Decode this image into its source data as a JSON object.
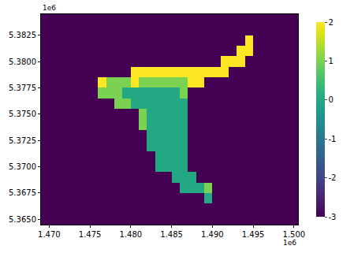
{
  "chart_data": {
    "type": "heatmap",
    "color": "Viridis",
    "grid": false,
    "x": [
      1469500,
      1470500,
      1471500,
      1472500,
      1473500,
      1474500,
      1475500,
      1476500,
      1477500,
      1478500,
      1479500,
      1480500,
      1481500,
      1482500,
      1483500,
      1484500,
      1485500,
      1486500,
      1487500,
      1488500,
      1489500,
      1490500,
      1491500,
      1492500,
      1493500,
      1494500,
      1495500,
      1496500,
      1497500,
      1498500,
      1499500,
      1500500
    ],
    "y": [
      5365000,
      5366000,
      5367000,
      5368000,
      5369000,
      5370000,
      5371000,
      5372000,
      5373000,
      5374000,
      5375000,
      5376000,
      5377000,
      5378000,
      5379000,
      5380000,
      5381000,
      5382000,
      5383000,
      5384000
    ],
    "z": [
      [
        -3,
        -3,
        -3,
        -3,
        -3,
        -3,
        -3,
        -3,
        -3,
        -3,
        -3,
        -3,
        -3,
        -3,
        -3,
        -3,
        -3,
        -3,
        -3,
        -3,
        -3,
        -3,
        -3,
        -3,
        -3,
        -3,
        -3,
        -3,
        -3,
        -3,
        -3,
        -3
      ],
      [
        -3,
        -3,
        -3,
        -3,
        -3,
        -3,
        -3,
        -3,
        -3,
        -3,
        -3,
        -3,
        -3,
        -3,
        -3,
        -3,
        -3,
        -3,
        -3,
        -3,
        -3,
        -3,
        -3,
        -3,
        -3,
        -3,
        -3,
        -3,
        -3,
        -3,
        -3,
        -3
      ],
      [
        -3,
        -3,
        -3,
        -3,
        -3,
        -3,
        -3,
        -3,
        -3,
        -3,
        -3,
        -3,
        -3,
        -3,
        -3,
        -3,
        -3,
        -3,
        -3,
        -3,
        0,
        -3,
        -3,
        -3,
        -3,
        -3,
        -3,
        -3,
        -3,
        -3,
        -3,
        -3
      ],
      [
        -3,
        -3,
        -3,
        -3,
        -3,
        -3,
        -3,
        -3,
        -3,
        -3,
        -3,
        -3,
        -3,
        -3,
        -3,
        -3,
        -3,
        0,
        0,
        0,
        1,
        -3,
        -3,
        -3,
        -3,
        -3,
        -3,
        -3,
        -3,
        -3,
        -3,
        -3
      ],
      [
        -3,
        -3,
        -3,
        -3,
        -3,
        -3,
        -3,
        -3,
        -3,
        -3,
        -3,
        -3,
        -3,
        -3,
        -3,
        -3,
        0,
        0,
        0,
        -3,
        -3,
        -3,
        -3,
        -3,
        -3,
        -3,
        -3,
        -3,
        -3,
        -3,
        -3,
        -3
      ],
      [
        -3,
        -3,
        -3,
        -3,
        -3,
        -3,
        -3,
        -3,
        -3,
        -3,
        -3,
        -3,
        -3,
        -3,
        0,
        0,
        0,
        0,
        -3,
        -3,
        -3,
        -3,
        -3,
        -3,
        -3,
        -3,
        -3,
        -3,
        -3,
        -3,
        -3,
        -3
      ],
      [
        -3,
        -3,
        -3,
        -3,
        -3,
        -3,
        -3,
        -3,
        -3,
        -3,
        -3,
        -3,
        -3,
        -3,
        0,
        0,
        0,
        0,
        -3,
        -3,
        -3,
        -3,
        -3,
        -3,
        -3,
        -3,
        -3,
        -3,
        -3,
        -3,
        -3,
        -3
      ],
      [
        -3,
        -3,
        -3,
        -3,
        -3,
        -3,
        -3,
        -3,
        -3,
        -3,
        -3,
        -3,
        -3,
        0,
        0,
        0,
        0,
        0,
        -3,
        -3,
        -3,
        -3,
        -3,
        -3,
        -3,
        -3,
        -3,
        -3,
        -3,
        -3,
        -3,
        -3
      ],
      [
        -3,
        -3,
        -3,
        -3,
        -3,
        -3,
        -3,
        -3,
        -3,
        -3,
        -3,
        -3,
        -3,
        0,
        0,
        0,
        0,
        0,
        -3,
        -3,
        -3,
        -3,
        -3,
        -3,
        -3,
        -3,
        -3,
        -3,
        -3,
        -3,
        -3,
        -3
      ],
      [
        -3,
        -3,
        -3,
        -3,
        -3,
        -3,
        -3,
        -3,
        -3,
        -3,
        -3,
        -3,
        1,
        0,
        0,
        0,
        0,
        0,
        -3,
        -3,
        -3,
        -3,
        -3,
        -3,
        -3,
        -3,
        -3,
        -3,
        -3,
        -3,
        -3,
        -3
      ],
      [
        -3,
        -3,
        -3,
        -3,
        -3,
        -3,
        -3,
        -3,
        -3,
        -3,
        -3,
        -3,
        1,
        0,
        0,
        0,
        0,
        0,
        -3,
        -3,
        -3,
        -3,
        -3,
        -3,
        -3,
        -3,
        -3,
        -3,
        -3,
        -3,
        -3,
        -3
      ],
      [
        -3,
        -3,
        -3,
        -3,
        -3,
        -3,
        -3,
        -3,
        -3,
        1,
        1,
        0,
        0,
        0,
        0,
        0,
        0,
        0,
        -3,
        -3,
        -3,
        -3,
        -3,
        -3,
        -3,
        -3,
        -3,
        -3,
        -3,
        -3,
        -3,
        -3
      ],
      [
        -3,
        -3,
        -3,
        -3,
        -3,
        -3,
        -3,
        1,
        1,
        1,
        0,
        0,
        0,
        0,
        0,
        0,
        0,
        1,
        -3,
        -3,
        -3,
        -3,
        -3,
        -3,
        -3,
        -3,
        -3,
        -3,
        -3,
        -3,
        -3,
        -3
      ],
      [
        -3,
        -3,
        -3,
        -3,
        -3,
        -3,
        -3,
        2,
        1,
        1,
        1,
        2,
        1,
        1,
        1,
        1,
        1,
        1,
        2,
        2,
        -3,
        -3,
        -3,
        -3,
        -3,
        -3,
        -3,
        -3,
        -3,
        -3,
        -3,
        -3
      ],
      [
        -3,
        -3,
        -3,
        -3,
        -3,
        -3,
        -3,
        -3,
        -3,
        -3,
        -3,
        2,
        2,
        2,
        2,
        2,
        2,
        2,
        2,
        2,
        2,
        2,
        2,
        -3,
        -3,
        -3,
        -3,
        -3,
        -3,
        -3,
        -3,
        -3
      ],
      [
        -3,
        -3,
        -3,
        -3,
        -3,
        -3,
        -3,
        -3,
        -3,
        -3,
        -3,
        -3,
        -3,
        -3,
        -3,
        -3,
        -3,
        -3,
        -3,
        -3,
        -3,
        -3,
        2,
        2,
        2,
        -3,
        -3,
        -3,
        -3,
        -3,
        -3,
        -3
      ],
      [
        -3,
        -3,
        -3,
        -3,
        -3,
        -3,
        -3,
        -3,
        -3,
        -3,
        -3,
        -3,
        -3,
        -3,
        -3,
        -3,
        -3,
        -3,
        -3,
        -3,
        -3,
        -3,
        -3,
        -3,
        2,
        2,
        -3,
        -3,
        -3,
        -3,
        -3,
        -3
      ],
      [
        -3,
        -3,
        -3,
        -3,
        -3,
        -3,
        -3,
        -3,
        -3,
        -3,
        -3,
        -3,
        -3,
        -3,
        -3,
        -3,
        -3,
        -3,
        -3,
        -3,
        -3,
        -3,
        -3,
        -3,
        -3,
        2,
        -3,
        -3,
        -3,
        -3,
        -3,
        -3
      ],
      [
        -3,
        -3,
        -3,
        -3,
        -3,
        -3,
        -3,
        -3,
        -3,
        -3,
        -3,
        -3,
        -3,
        -3,
        -3,
        -3,
        -3,
        -3,
        -3,
        -3,
        -3,
        -3,
        -3,
        -3,
        -3,
        -3,
        -3,
        -3,
        -3,
        -3,
        -3,
        -3
      ],
      [
        -3,
        -3,
        -3,
        -3,
        -3,
        -3,
        -3,
        -3,
        -3,
        -3,
        -3,
        -3,
        -3,
        -3,
        -3,
        -3,
        -3,
        -3,
        -3,
        -3,
        -3,
        -3,
        -3,
        -3,
        -3,
        -3,
        -3,
        -3,
        -3,
        -3,
        -3,
        -3
      ]
    ],
    "xlim": [
      1469000,
      1500500
    ],
    "ylim": [
      5364500,
      5384500
    ],
    "xticks": [
      {
        "value": 1470000,
        "label": "1.470"
      },
      {
        "value": 1475000,
        "label": "1.475"
      },
      {
        "value": 1480000,
        "label": "1.480"
      },
      {
        "value": 1485000,
        "label": "1.485"
      },
      {
        "value": 1490000,
        "label": "1.490"
      },
      {
        "value": 1495000,
        "label": "1.495"
      },
      {
        "value": 1500000,
        "label": "1.500"
      }
    ],
    "yticks": [
      {
        "value": 5365000,
        "label": "5.3650"
      },
      {
        "value": 5367500,
        "label": "5.3675"
      },
      {
        "value": 5370000,
        "label": "5.3700"
      },
      {
        "value": 5372500,
        "label": "5.3725"
      },
      {
        "value": 5375000,
        "label": "5.3750"
      },
      {
        "value": 5377500,
        "label": "5.3775"
      },
      {
        "value": 5380000,
        "label": "5.3800"
      },
      {
        "value": 5382500,
        "label": "5.3825"
      }
    ],
    "colorbar": {
      "range": [
        -3,
        2
      ],
      "ticks": [
        -3,
        -2,
        -1,
        0,
        1,
        2
      ]
    },
    "annotations": [
      {
        "text": "1e6",
        "axis": "y"
      },
      {
        "text": "1e6",
        "axis": "x"
      }
    ]
  }
}
